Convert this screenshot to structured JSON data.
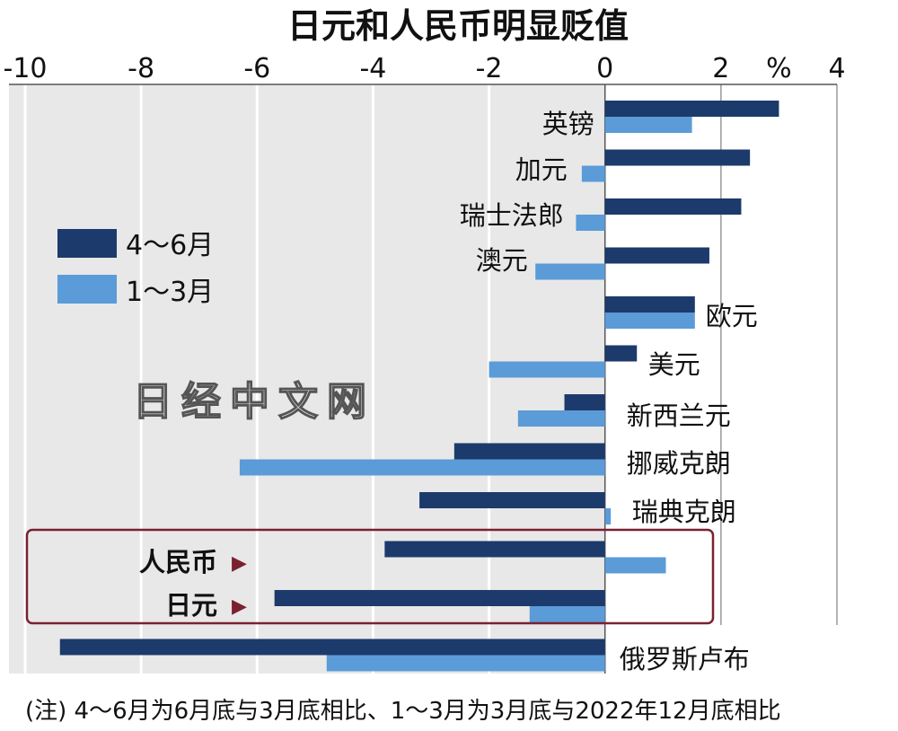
{
  "colors": {
    "series_apr_jun": "#1c3a6b",
    "series_jan_mar": "#5b9bd8",
    "negative_bg": "#e8e8e8",
    "grid": "#ffffff",
    "highlight_box": "#7a2130",
    "marker": "#7a2130"
  },
  "watermark": "日经中文网",
  "percent_symbol": "%",
  "highlight_marker": "▶",
  "chart_data": {
    "type": "bar",
    "orientation": "horizontal",
    "title": "日元和人民币明显贬值",
    "xlim": [
      -10,
      4
    ],
    "x_ticks": [
      "-10",
      "-8",
      "-6",
      "-4",
      "-2",
      "0",
      "2",
      "4"
    ],
    "x_unit": "%",
    "grid": true,
    "legend_position": "left",
    "categories": [
      "英镑",
      "加元",
      "瑞士法郎",
      "澳元",
      "欧元",
      "美元",
      "新西兰元",
      "挪威克朗",
      "瑞典克朗",
      "人民币",
      "日元",
      "俄罗斯卢布"
    ],
    "highlighted_categories": [
      "人民币",
      "日元"
    ],
    "series": [
      {
        "name": "4～6月",
        "values": [
          3.0,
          2.5,
          2.35,
          1.8,
          1.55,
          0.55,
          -0.7,
          -2.6,
          -3.2,
          -3.8,
          -5.7,
          -9.4
        ]
      },
      {
        "name": "1～3月",
        "values": [
          1.5,
          -0.4,
          -0.5,
          -1.2,
          1.55,
          -2.0,
          -1.5,
          -6.3,
          0.1,
          1.05,
          -1.3,
          -4.8
        ]
      }
    ],
    "note": "(注) 4～6月为6月底与3月底相比、1～3月为3月底与2022年12月底相比"
  }
}
